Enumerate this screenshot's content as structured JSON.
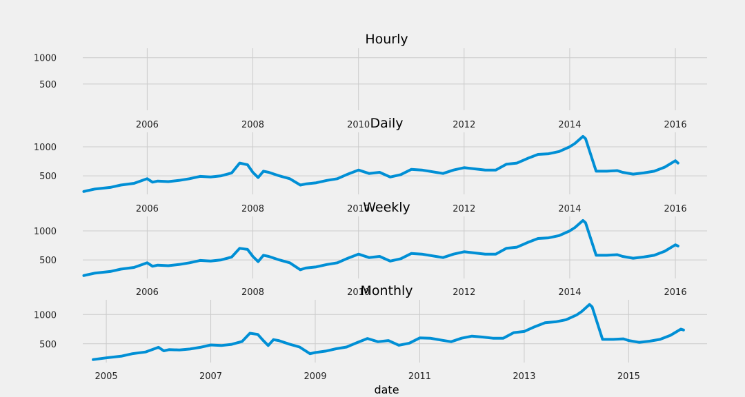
{
  "colors": {
    "background": "#f0f0f0",
    "grid": "#cbcbcb",
    "series": "#008fd5"
  },
  "chart_data": [
    {
      "type": "line",
      "title": "Hourly",
      "xlabel": "",
      "ylabel": "",
      "grid": true,
      "xlim": [
        2004.78,
        2016.6
      ],
      "ylim": [
        0,
        1180
      ],
      "yticks": [
        500,
        1000
      ],
      "xticks": [
        2006,
        2008,
        2010,
        2012,
        2014,
        2016
      ],
      "series": [
        {
          "x": [],
          "values": []
        }
      ]
    },
    {
      "type": "line",
      "title": "Daily",
      "xlabel": "",
      "ylabel": "",
      "grid": true,
      "xlim": [
        2004.78,
        2016.6
      ],
      "ylim": [
        180,
        1250
      ],
      "yticks": [
        500,
        1000
      ],
      "xticks": [
        2006,
        2008,
        2010,
        2012,
        2014,
        2016
      ],
      "series": [
        {
          "x": [
            2004.8,
            2005.0,
            2005.3,
            2005.5,
            2005.75,
            2006.0,
            2006.1,
            2006.2,
            2006.4,
            2006.6,
            2006.8,
            2007.0,
            2007.2,
            2007.4,
            2007.6,
            2007.75,
            2007.9,
            2008.0,
            2008.1,
            2008.2,
            2008.3,
            2008.5,
            2008.7,
            2008.9,
            2009.0,
            2009.2,
            2009.4,
            2009.6,
            2009.8,
            2010.0,
            2010.2,
            2010.4,
            2010.6,
            2010.8,
            2011.0,
            2011.2,
            2011.4,
            2011.6,
            2011.8,
            2012.0,
            2012.2,
            2012.4,
            2012.6,
            2012.8,
            2013.0,
            2013.2,
            2013.4,
            2013.6,
            2013.8,
            2014.0,
            2014.1,
            2014.25,
            2014.3,
            2014.5,
            2014.7,
            2014.9,
            2015.0,
            2015.2,
            2015.4,
            2015.6,
            2015.8,
            2016.0,
            2016.05
          ],
          "values": [
            230,
            270,
            300,
            340,
            370,
            450,
            390,
            410,
            400,
            420,
            450,
            490,
            480,
            500,
            550,
            720,
            690,
            560,
            470,
            580,
            560,
            500,
            450,
            340,
            360,
            380,
            420,
            450,
            530,
            600,
            540,
            560,
            480,
            520,
            610,
            600,
            570,
            540,
            600,
            640,
            620,
            600,
            600,
            700,
            720,
            800,
            870,
            880,
            920,
            1000,
            1060,
            1180,
            1140,
            580,
            580,
            590,
            560,
            530,
            550,
            580,
            650,
            760,
            720
          ]
        }
      ]
    },
    {
      "type": "line",
      "title": "Weekly",
      "xlabel": "",
      "ylabel": "",
      "grid": true,
      "xlim": [
        2004.78,
        2016.6
      ],
      "ylim": [
        180,
        1250
      ],
      "yticks": [
        500,
        1000
      ],
      "xticks": [
        2006,
        2008,
        2010,
        2012,
        2014,
        2016
      ],
      "series": [
        {
          "x": [
            2004.8,
            2005.0,
            2005.3,
            2005.5,
            2005.75,
            2006.0,
            2006.1,
            2006.2,
            2006.4,
            2006.6,
            2006.8,
            2007.0,
            2007.2,
            2007.4,
            2007.6,
            2007.75,
            2007.9,
            2008.0,
            2008.1,
            2008.2,
            2008.3,
            2008.5,
            2008.7,
            2008.9,
            2009.0,
            2009.2,
            2009.4,
            2009.6,
            2009.8,
            2010.0,
            2010.2,
            2010.4,
            2010.6,
            2010.8,
            2011.0,
            2011.2,
            2011.4,
            2011.6,
            2011.8,
            2012.0,
            2012.2,
            2012.4,
            2012.6,
            2012.8,
            2013.0,
            2013.2,
            2013.4,
            2013.6,
            2013.8,
            2014.0,
            2014.1,
            2014.25,
            2014.3,
            2014.5,
            2014.7,
            2014.9,
            2015.0,
            2015.2,
            2015.4,
            2015.6,
            2015.8,
            2016.0,
            2016.05
          ],
          "values": [
            230,
            270,
            300,
            340,
            370,
            450,
            390,
            410,
            400,
            420,
            450,
            490,
            480,
            500,
            550,
            700,
            680,
            560,
            470,
            580,
            560,
            500,
            450,
            330,
            360,
            380,
            420,
            450,
            530,
            600,
            540,
            560,
            480,
            520,
            610,
            600,
            570,
            540,
            600,
            640,
            620,
            600,
            600,
            700,
            720,
            800,
            870,
            880,
            920,
            1000,
            1060,
            1180,
            1140,
            580,
            580,
            590,
            560,
            530,
            550,
            580,
            650,
            760,
            740
          ]
        }
      ]
    },
    {
      "type": "line",
      "title": "Monthly",
      "xlabel": "date",
      "ylabel": "",
      "grid": true,
      "xlim": [
        2004.55,
        2016.5
      ],
      "ylim": [
        180,
        1250
      ],
      "yticks": [
        500,
        1000
      ],
      "xticks": [
        2005,
        2007,
        2009,
        2011,
        2013,
        2015
      ],
      "series": [
        {
          "x": [
            2004.75,
            2005.0,
            2005.3,
            2005.5,
            2005.75,
            2006.0,
            2006.1,
            2006.2,
            2006.4,
            2006.6,
            2006.8,
            2007.0,
            2007.2,
            2007.4,
            2007.6,
            2007.75,
            2007.9,
            2008.0,
            2008.1,
            2008.2,
            2008.3,
            2008.5,
            2008.7,
            2008.9,
            2009.0,
            2009.2,
            2009.4,
            2009.6,
            2009.8,
            2010.0,
            2010.2,
            2010.4,
            2010.6,
            2010.8,
            2011.0,
            2011.2,
            2011.4,
            2011.6,
            2011.8,
            2012.0,
            2012.2,
            2012.4,
            2012.6,
            2012.8,
            2013.0,
            2013.2,
            2013.4,
            2013.6,
            2013.8,
            2014.0,
            2014.1,
            2014.25,
            2014.3,
            2014.5,
            2014.7,
            2014.9,
            2015.0,
            2015.2,
            2015.4,
            2015.6,
            2015.8,
            2016.0,
            2016.05
          ],
          "values": [
            230,
            260,
            290,
            330,
            360,
            440,
            380,
            400,
            395,
            410,
            440,
            480,
            470,
            490,
            540,
            680,
            660,
            560,
            470,
            570,
            555,
            495,
            445,
            330,
            350,
            375,
            415,
            445,
            520,
            590,
            535,
            555,
            475,
            510,
            600,
            595,
            565,
            535,
            595,
            630,
            615,
            595,
            595,
            690,
            710,
            790,
            860,
            875,
            910,
            990,
            1050,
            1170,
            1130,
            575,
            575,
            585,
            555,
            525,
            545,
            575,
            645,
            750,
            735
          ]
        }
      ]
    }
  ]
}
